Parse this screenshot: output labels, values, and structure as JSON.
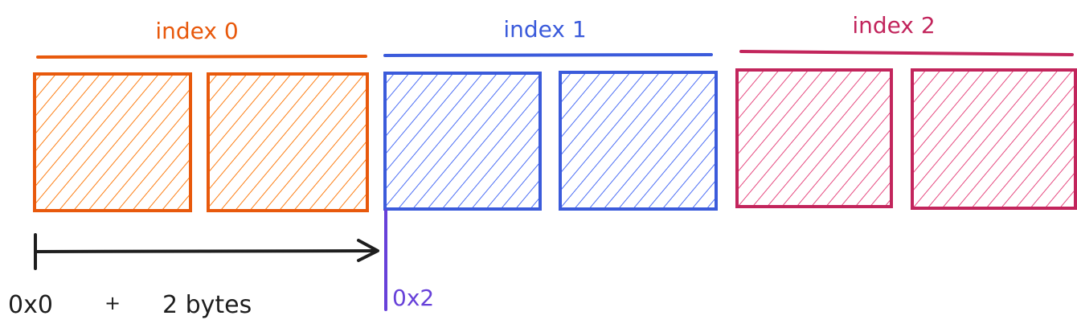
{
  "groups": [
    {
      "label": "index 0",
      "color": "#e8590c",
      "fill": "#fd7e14"
    },
    {
      "label": "index 1",
      "color": "#3b5bdb",
      "fill": "#4c6ef5"
    },
    {
      "label": "index 2",
      "color": "#c2255c",
      "fill": "#e64980"
    }
  ],
  "pointer": {
    "start_label": "0x0",
    "plus": "+",
    "offset_label": "2 bytes",
    "end_label": "0x2",
    "end_color": "#6741d9"
  }
}
